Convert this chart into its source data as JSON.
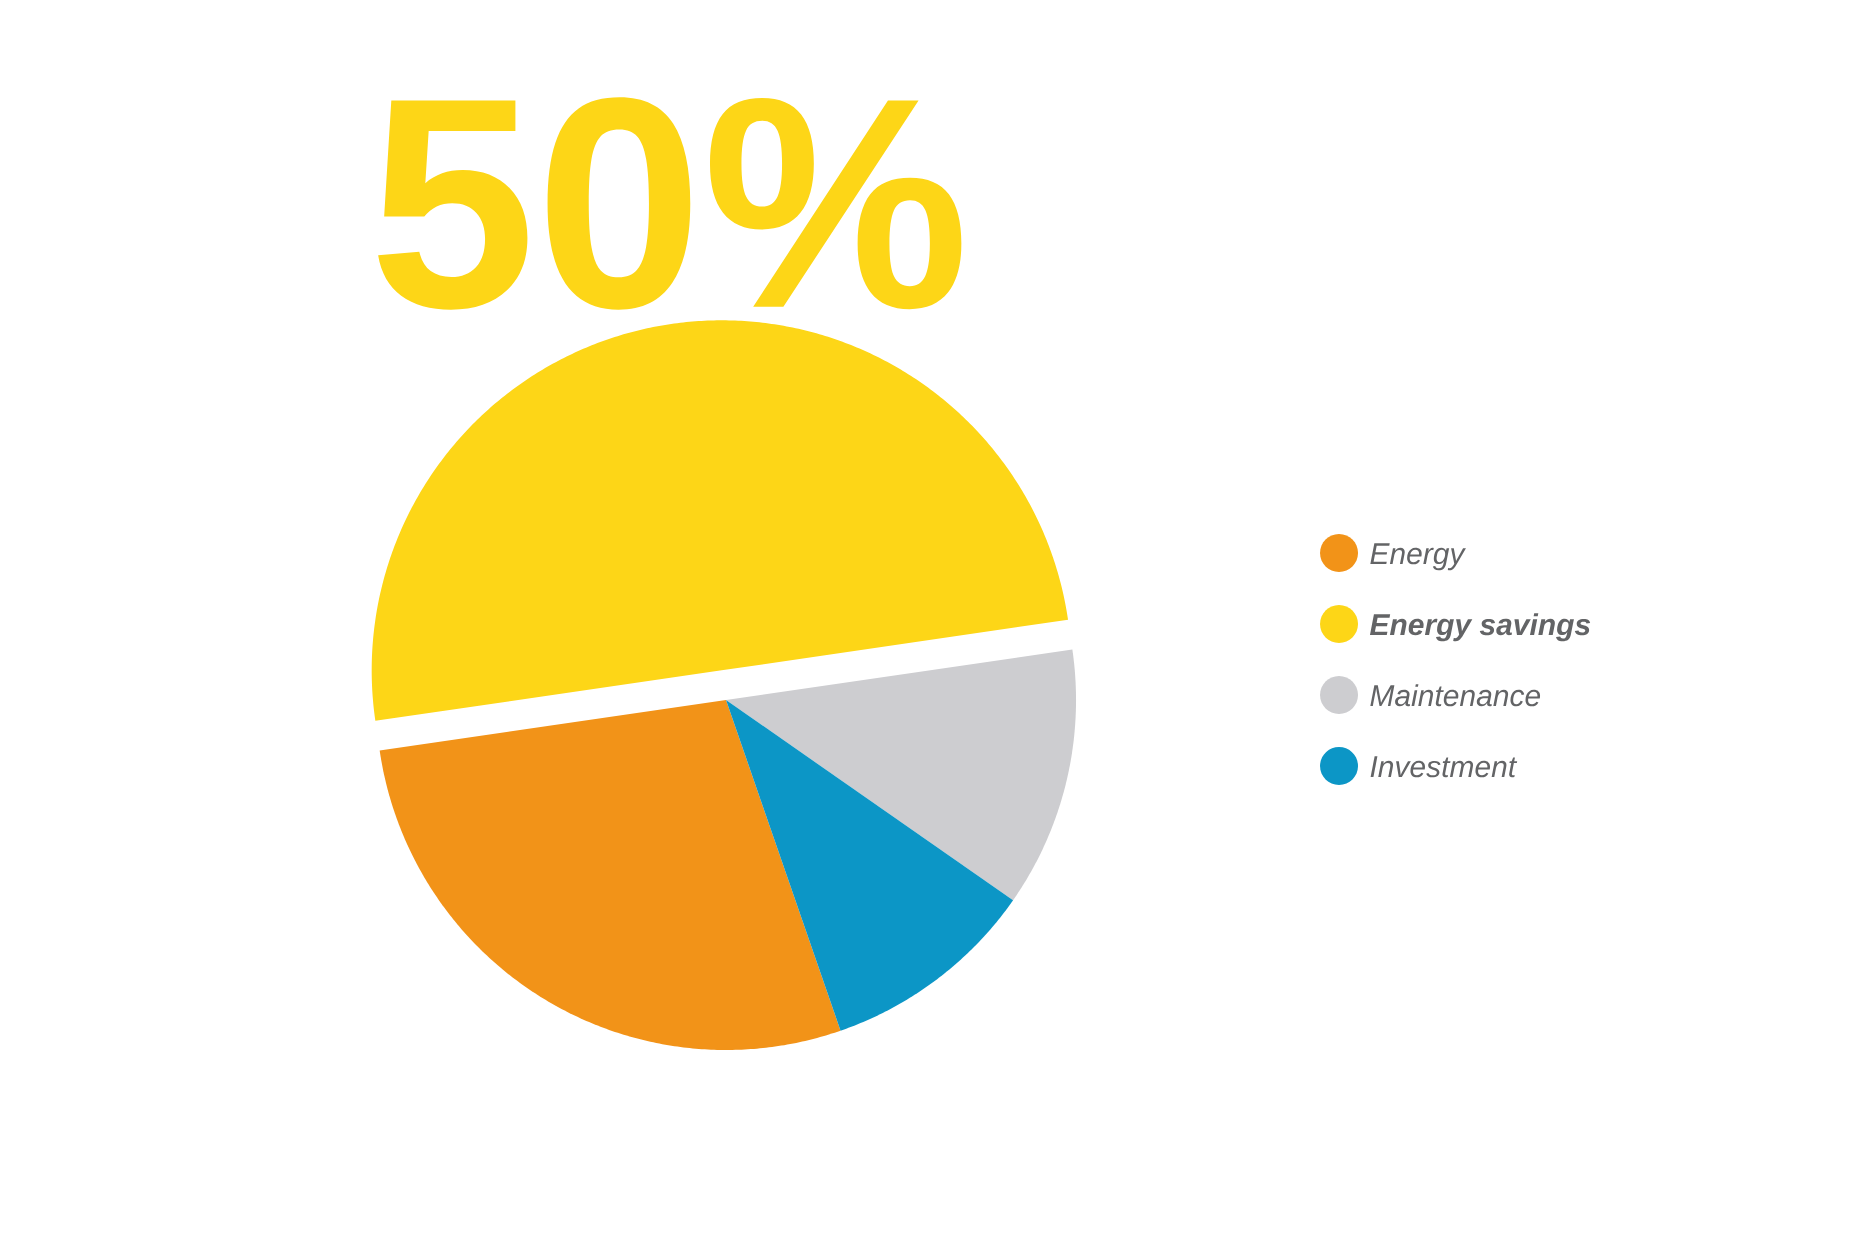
{
  "chart_data": {
    "type": "pie",
    "categories": [
      "Energy",
      "Energy savings",
      "Maintenance",
      "Investment"
    ],
    "values": [
      28,
      50,
      12,
      10
    ],
    "colors": [
      "#f29318",
      "#fdd617",
      "#cdcdd0",
      "#0c96c6"
    ],
    "value_labels": [
      null,
      "50%",
      null,
      null
    ],
    "legend": "right"
  }
}
